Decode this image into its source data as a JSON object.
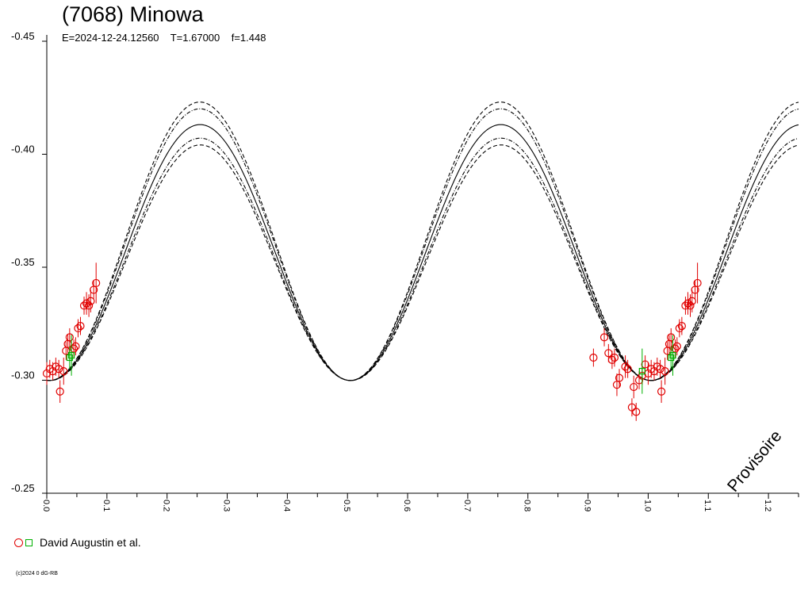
{
  "header": {
    "title": "(7068) Minowa",
    "subtitle": "E=2024-12-24.12560    T=1.67000    f=1.448"
  },
  "watermark": "Provisoire",
  "legend": {
    "label": "David Augustin et al."
  },
  "copyright": "(c)2024 0 dG-RB",
  "chart_data": {
    "type": "scatter",
    "title": "(7068) Minowa",
    "xlim": [
      0,
      1.25
    ],
    "ylim": [
      -0.45,
      -0.25
    ],
    "y_inverted": true,
    "x_ticks": [
      "0.0",
      "0.1",
      "0.2",
      "0.3",
      "0.4",
      "0.5",
      "0.6",
      "0.7",
      "0.8",
      "0.9",
      "1.0",
      "1.1",
      "1.2"
    ],
    "y_ticks": [
      "-0.45",
      "-0.40",
      "-0.35",
      "-0.30",
      "-0.25"
    ],
    "grid": false,
    "colors": {
      "red_points": "#e00000",
      "green_points": "#00b000",
      "curves": "#000000"
    },
    "model_curve": {
      "period_h": 1.67,
      "min_phases": [
        0.0,
        0.5,
        1.0
      ],
      "max_phases": [
        0.23,
        0.73,
        1.23
      ],
      "center": {
        "mag_at_minima": -0.3,
        "mag_at_maxima": -0.413
      },
      "inner_envelope": {
        "mag_at_maxima": [
          -0.407,
          -0.42
        ]
      },
      "outer_envelope": {
        "mag_at_maxima": [
          -0.404,
          -0.423
        ]
      }
    },
    "series": [
      {
        "name": "David Augustin et al.",
        "marker": "circle",
        "color": "#e00000",
        "points": [
          [
            0.0,
            -0.303
          ],
          [
            0.005,
            -0.305
          ],
          [
            0.01,
            -0.304
          ],
          [
            0.015,
            -0.306
          ],
          [
            0.02,
            -0.305
          ],
          [
            0.022,
            -0.295
          ],
          [
            0.028,
            -0.304
          ],
          [
            0.032,
            -0.313
          ],
          [
            0.035,
            -0.316
          ],
          [
            0.038,
            -0.319
          ],
          [
            0.045,
            -0.314
          ],
          [
            0.048,
            -0.315
          ],
          [
            0.052,
            -0.323
          ],
          [
            0.056,
            -0.324
          ],
          [
            0.062,
            -0.333
          ],
          [
            0.066,
            -0.334
          ],
          [
            0.07,
            -0.333
          ],
          [
            0.073,
            -0.335
          ],
          [
            0.078,
            -0.34
          ],
          [
            0.082,
            -0.343
          ],
          [
            0.909,
            -0.31
          ],
          [
            0.927,
            -0.319
          ],
          [
            0.934,
            -0.312
          ],
          [
            0.94,
            -0.309
          ],
          [
            0.944,
            -0.31
          ],
          [
            0.948,
            -0.298
          ],
          [
            0.952,
            -0.301
          ],
          [
            0.962,
            -0.306
          ],
          [
            0.966,
            -0.305
          ],
          [
            0.973,
            -0.288
          ],
          [
            0.976,
            -0.297
          ],
          [
            0.98,
            -0.286
          ],
          [
            0.985,
            -0.3
          ],
          [
            0.99,
            -0.302
          ],
          [
            0.995,
            -0.307
          ],
          [
            1.0,
            -0.303
          ],
          [
            1.005,
            -0.305
          ],
          [
            1.01,
            -0.304
          ],
          [
            1.015,
            -0.306
          ],
          [
            1.02,
            -0.305
          ],
          [
            1.022,
            -0.295
          ],
          [
            1.028,
            -0.304
          ],
          [
            1.032,
            -0.313
          ],
          [
            1.035,
            -0.316
          ],
          [
            1.038,
            -0.319
          ],
          [
            1.045,
            -0.314
          ],
          [
            1.048,
            -0.315
          ],
          [
            1.052,
            -0.323
          ],
          [
            1.056,
            -0.324
          ],
          [
            1.062,
            -0.333
          ],
          [
            1.066,
            -0.334
          ],
          [
            1.07,
            -0.333
          ],
          [
            1.073,
            -0.335
          ],
          [
            1.078,
            -0.34
          ],
          [
            1.082,
            -0.343
          ]
        ],
        "error_bars": [
          0.005,
          0.004,
          0.004,
          0.004,
          0.004,
          0.005,
          0.006,
          0.004,
          0.004,
          0.004,
          0.004,
          0.004,
          0.004,
          0.004,
          0.004,
          0.005,
          0.005,
          0.005,
          0.004,
          0.009,
          0.004,
          0.004,
          0.004,
          0.004,
          0.004,
          0.005,
          0.004,
          0.005,
          0.004,
          0.004,
          0.005,
          0.004,
          0.004,
          0.004,
          0.004,
          0.005,
          0.004,
          0.004,
          0.004,
          0.004,
          0.005,
          0.006,
          0.004,
          0.004,
          0.004,
          0.004,
          0.004,
          0.004,
          0.004,
          0.004,
          0.005,
          0.005,
          0.005,
          0.004,
          0.009
        ]
      },
      {
        "name": "David Augustin et al.",
        "marker": "square",
        "color": "#00b000",
        "points": [
          [
            0.038,
            -0.31
          ],
          [
            0.041,
            -0.311
          ],
          [
            0.99,
            -0.304
          ],
          [
            1.038,
            -0.31
          ],
          [
            1.041,
            -0.311
          ]
        ],
        "error_bars": [
          0.005,
          0.009,
          0.01,
          0.005,
          0.009
        ]
      }
    ]
  }
}
